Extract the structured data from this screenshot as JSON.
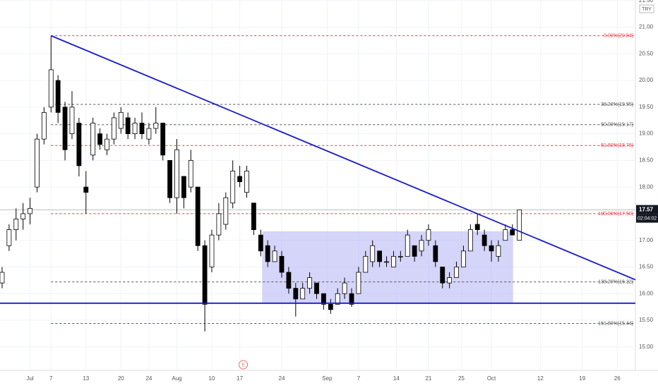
{
  "chart_data": {
    "type": "candlestick",
    "currency": "TRY",
    "countdown": "02:04:02",
    "open": [
      16.2,
      16.9,
      17.2,
      17.4,
      17.5,
      18.0,
      18.9,
      19.5,
      20.0,
      19.5,
      19.0,
      19.2,
      18.0,
      18.6,
      19.0,
      18.7,
      18.9,
      19.1,
      19.3,
      19.0,
      19.2,
      18.9,
      19.1,
      19.2,
      18.5,
      17.8,
      18.2,
      18.0,
      18.0,
      16.9,
      16.5,
      17.1,
      17.3,
      17.7,
      18.2,
      17.9,
      17.7,
      17.1,
      16.9,
      16.6,
      16.7,
      16.4,
      16.1,
      15.9,
      16.1,
      16.2,
      16.0,
      15.8,
      15.8,
      16.0,
      16.0,
      16.0,
      16.4,
      16.6,
      16.8,
      16.6,
      16.5,
      16.7,
      16.7,
      16.9,
      16.8,
      17.0,
      16.9,
      16.5,
      16.2,
      16.3,
      16.5,
      16.8,
      17.3,
      17.1,
      16.9,
      16.7,
      17.0,
      17.2,
      17.0
    ],
    "high": [
      16.5,
      17.3,
      17.6,
      17.7,
      17.8,
      19.0,
      19.5,
      20.84,
      20.1,
      19.6,
      19.8,
      19.3,
      18.3,
      19.3,
      19.1,
      19.0,
      19.4,
      19.5,
      19.4,
      19.3,
      19.4,
      19.2,
      19.5,
      19.2,
      18.5,
      18.9,
      18.2,
      18.7,
      18.0,
      17.0,
      17.2,
      17.7,
      17.9,
      18.5,
      18.4,
      18.4,
      17.7,
      17.2,
      17.0,
      16.9,
      16.8,
      16.5,
      16.2,
      16.2,
      16.4,
      16.2,
      16.0,
      15.9,
      16.1,
      16.3,
      16.1,
      16.5,
      16.8,
      17.0,
      16.8,
      16.7,
      16.8,
      16.8,
      17.2,
      16.9,
      17.1,
      17.3,
      17.0,
      16.5,
      16.4,
      16.6,
      16.9,
      17.3,
      17.5,
      17.2,
      17.0,
      17.0,
      17.3,
      17.3,
      17.57
    ],
    "low": [
      16.1,
      16.8,
      17.0,
      17.2,
      17.3,
      17.9,
      18.8,
      19.4,
      19.2,
      18.5,
      18.9,
      18.2,
      17.5,
      18.5,
      18.7,
      18.6,
      18.8,
      19.0,
      18.9,
      18.9,
      18.9,
      18.8,
      19.0,
      18.5,
      17.7,
      17.5,
      17.6,
      17.9,
      16.8,
      15.29,
      16.4,
      17.0,
      17.2,
      17.6,
      18.0,
      17.8,
      17.1,
      16.7,
      16.5,
      16.6,
      16.3,
      16.0,
      15.57,
      15.9,
      16.0,
      15.9,
      15.7,
      15.62,
      15.8,
      15.9,
      15.75,
      16.0,
      16.4,
      16.5,
      16.5,
      16.5,
      16.5,
      16.6,
      16.7,
      16.6,
      16.7,
      16.9,
      16.5,
      16.1,
      16.1,
      16.3,
      16.5,
      16.8,
      17.1,
      16.8,
      16.6,
      16.6,
      17.0,
      17.1,
      17.0
    ],
    "close": [
      16.4,
      17.2,
      17.4,
      17.5,
      17.6,
      18.9,
      19.4,
      20.2,
      19.4,
      18.7,
      19.5,
      18.4,
      17.9,
      19.2,
      18.8,
      18.9,
      19.3,
      19.4,
      19.0,
      19.2,
      19.0,
      19.1,
      19.2,
      18.6,
      17.8,
      18.7,
      17.8,
      18.5,
      16.9,
      15.8,
      17.1,
      17.5,
      17.8,
      18.3,
      18.1,
      18.3,
      17.2,
      16.8,
      16.6,
      16.8,
      16.4,
      16.1,
      15.9,
      16.1,
      16.3,
      16.0,
      15.8,
      15.7,
      16.0,
      16.2,
      15.8,
      16.4,
      16.7,
      16.9,
      16.6,
      16.6,
      16.7,
      16.7,
      17.1,
      16.7,
      17.0,
      17.2,
      16.6,
      16.2,
      16.3,
      16.5,
      16.8,
      17.2,
      17.2,
      16.9,
      16.8,
      16.9,
      17.2,
      17.1,
      17.57
    ],
    "xlim": [
      -0.3,
      90.6
    ],
    "xticks": [
      {
        "value": 4,
        "label": "Jul"
      },
      7,
      {
        "value": 12,
        "label": "13"
      },
      {
        "value": 17,
        "label": "20"
      },
      {
        "value": 21,
        "label": "24"
      },
      {
        "value": 25,
        "label": "Aug"
      },
      {
        "value": 30,
        "label": "10"
      },
      {
        "value": 34,
        "label": "17"
      },
      {
        "value": 40,
        "label": "24"
      },
      {
        "value": 46.5,
        "label": "Sep"
      },
      {
        "value": 51,
        "label": "7"
      },
      {
        "value": 56.4,
        "label": "14"
      },
      {
        "value": 61,
        "label": "21"
      },
      {
        "value": 65.7,
        "label": "25"
      },
      {
        "value": 70,
        "label": "Oct"
      },
      {
        "value": 77,
        "label": "12"
      },
      {
        "value": 83,
        "label": "19"
      },
      {
        "value": 88,
        "label": "26"
      }
    ],
    "ylim": [
      14.56,
      21.51
    ],
    "yticks": [
      {
        "value": 15,
        "label": "15.00"
      },
      {
        "value": 15.5,
        "label": "15.50"
      },
      {
        "value": 16,
        "label": "16.00"
      },
      {
        "value": 16.5,
        "label": "16.50"
      },
      {
        "value": 17,
        "label": "17.00"
      },
      {
        "value": 17.5,
        "label": "17.50"
      },
      {
        "value": 18,
        "label": "18.00"
      },
      {
        "value": 18.5,
        "label": "18.50"
      },
      {
        "value": 19,
        "label": "19.00"
      },
      {
        "value": 19.5,
        "label": "19.50"
      },
      {
        "value": 20,
        "label": "20.00"
      },
      {
        "value": 20.5,
        "label": "20.50"
      },
      {
        "value": 21,
        "label": "21.00"
      },
      {
        "value": 21.5,
        "label": "21.50"
      }
    ],
    "grid": true,
    "fib_levels": [
      {
        "label": "0.00%(20.84)",
        "value": 20.84,
        "color": "#f23645"
      },
      {
        "label": "38.20%(19.55)",
        "value": 19.55,
        "color": "#555555"
      },
      {
        "label": "50.00%(19.17)",
        "value": 19.17,
        "color": "#555555"
      },
      {
        "label": "61.80%(18.78)",
        "value": 18.78,
        "color": "#f23645"
      },
      {
        "label": "100.00%(17.50)",
        "value": 17.5,
        "color": "#f23645"
      },
      {
        "label": "138.20%(16.22)",
        "value": 16.22,
        "color": "#555555"
      },
      {
        "label": "161.80%(15.44)",
        "value": 15.44,
        "color": "#555555"
      }
    ],
    "fib_start": 7,
    "trend_line": {
      "x": [
        7,
        90.6
      ],
      "y": [
        20.84,
        16.26
      ],
      "color": "#1a1acc"
    },
    "support": {
      "value": 15.82,
      "color": "#1a1acc"
    },
    "range_box": {
      "x": [
        37.2,
        73.1
      ],
      "y": [
        15.82,
        17.17
      ],
      "color": "#b3b3f5"
    },
    "event": {
      "x": 34.5,
      "label": "E"
    }
  }
}
